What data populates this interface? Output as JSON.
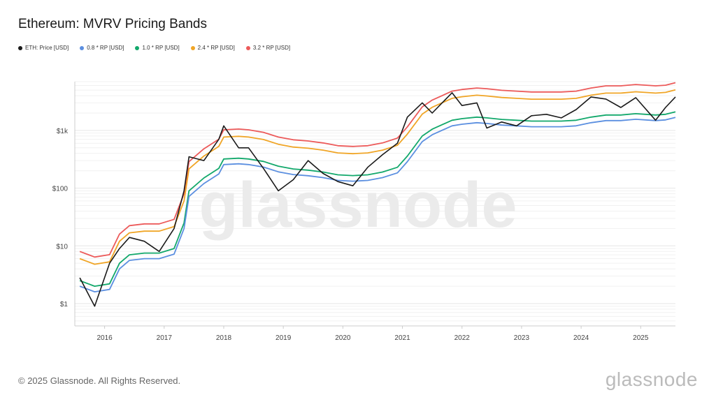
{
  "chart_data": {
    "type": "line",
    "title": "Ethereum: MVRV Pricing Bands",
    "yscale": "log",
    "ylim": [
      0.41,
      7000
    ],
    "xlim": [
      "2015-07",
      "2025-08"
    ],
    "grid": true,
    "legend_position": "top-left",
    "y_ticks": [
      {
        "value": 1,
        "label": "$1"
      },
      {
        "value": 10,
        "label": "$10"
      },
      {
        "value": 100,
        "label": "$100"
      },
      {
        "value": 1000,
        "label": "$1k"
      }
    ],
    "x_ticks": [
      "2016",
      "2017",
      "2018",
      "2019",
      "2020",
      "2021",
      "2022",
      "2023",
      "2024",
      "2025"
    ],
    "x": [
      "2015-08",
      "2015-11",
      "2016-02",
      "2016-04",
      "2016-06",
      "2016-09",
      "2016-12",
      "2017-03",
      "2017-05",
      "2017-06",
      "2017-09",
      "2017-12",
      "2018-01",
      "2018-04",
      "2018-06",
      "2018-09",
      "2018-12",
      "2019-03",
      "2019-06",
      "2019-09",
      "2019-12",
      "2020-03",
      "2020-06",
      "2020-09",
      "2020-12",
      "2021-02",
      "2021-05",
      "2021-07",
      "2021-11",
      "2022-01",
      "2022-04",
      "2022-06",
      "2022-09",
      "2022-12",
      "2023-03",
      "2023-06",
      "2023-09",
      "2023-12",
      "2024-03",
      "2024-06",
      "2024-09",
      "2024-12",
      "2025-04",
      "2025-06",
      "2025-08"
    ],
    "series": [
      {
        "name": "ETH: Price [USD]",
        "color": "#1a1a1a",
        "values": [
          2.8,
          0.9,
          5,
          9,
          14,
          12,
          8,
          20,
          90,
          350,
          300,
          700,
          1200,
          500,
          500,
          220,
          90,
          140,
          300,
          180,
          130,
          110,
          230,
          380,
          600,
          1700,
          3000,
          2000,
          4500,
          2700,
          3000,
          1100,
          1400,
          1200,
          1800,
          1900,
          1650,
          2300,
          3800,
          3500,
          2500,
          3700,
          1500,
          2500,
          3800
        ]
      },
      {
        "name": "0.8 * RP [USD]",
        "color": "#5b8fe0",
        "values": [
          2.0,
          1.6,
          1.76,
          4,
          5.6,
          6,
          6,
          7.2,
          20,
          72,
          120,
          176,
          256,
          264,
          256,
          232,
          192,
          172,
          164,
          152,
          136,
          132,
          136,
          152,
          184,
          288,
          640,
          840,
          1200,
          1280,
          1360,
          1320,
          1240,
          1200,
          1160,
          1160,
          1160,
          1200,
          1360,
          1480,
          1480,
          1560,
          1480,
          1520,
          1680
        ]
      },
      {
        "name": "1.0 * RP [USD]",
        "color": "#12a86b",
        "values": [
          2.5,
          2.0,
          2.2,
          5,
          7,
          7.5,
          7.5,
          9,
          25,
          90,
          150,
          220,
          320,
          330,
          320,
          290,
          240,
          215,
          205,
          190,
          170,
          165,
          170,
          190,
          230,
          360,
          800,
          1050,
          1500,
          1600,
          1700,
          1650,
          1550,
          1500,
          1450,
          1450,
          1450,
          1500,
          1700,
          1850,
          1850,
          1950,
          1850,
          1900,
          2100
        ]
      },
      {
        "name": "2.4 * RP [USD]",
        "color": "#f0a526",
        "values": [
          6,
          4.8,
          5.28,
          12,
          16.8,
          18,
          18,
          21.6,
          60,
          216,
          360,
          528,
          768,
          792,
          768,
          696,
          576,
          516,
          492,
          456,
          408,
          396,
          408,
          456,
          552,
          864,
          1920,
          2520,
          3600,
          3840,
          4080,
          3960,
          3720,
          3600,
          3480,
          3480,
          3480,
          3600,
          4080,
          4440,
          4440,
          4680,
          4440,
          4560,
          5040
        ]
      },
      {
        "name": "3.2 * RP [USD]",
        "color": "#ec5a5a",
        "values": [
          8,
          6.4,
          7.04,
          16,
          22.4,
          24,
          24,
          28.8,
          80,
          288,
          480,
          704,
          1024,
          1056,
          1024,
          928,
          768,
          688,
          656,
          608,
          544,
          528,
          544,
          608,
          736,
          1152,
          2560,
          3360,
          4800,
          5120,
          5440,
          5280,
          4960,
          4800,
          4640,
          4640,
          4640,
          4800,
          5440,
          5920,
          5920,
          6240,
          5920,
          6080,
          6720
        ]
      }
    ]
  },
  "watermark": "glassnode",
  "footer": {
    "copyright": "© 2025 Glassnode. All Rights Reserved.",
    "logo": "glassnode"
  }
}
